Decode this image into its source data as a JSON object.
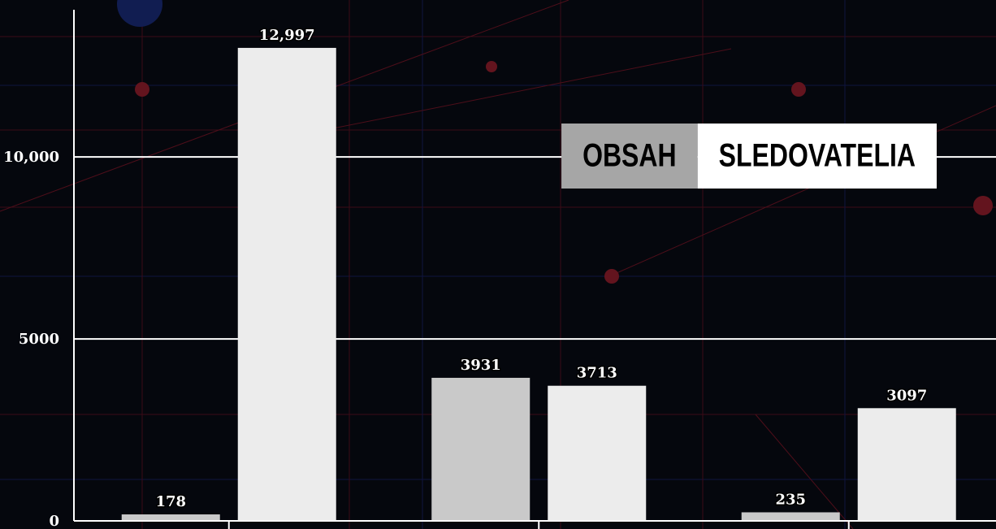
{
  "chart_data": {
    "type": "bar",
    "categories": [
      null,
      null,
      null
    ],
    "series": [
      {
        "name": "OBSAH",
        "color": "#c9c9c9",
        "values": [
          178,
          3931,
          235
        ]
      },
      {
        "name": "SLEDOVATELIA",
        "color": "#ececec",
        "values": [
          12997,
          3713,
          3097
        ],
        "value_labels": [
          "12,997",
          "3713",
          "3097"
        ]
      }
    ],
    "ylim": [
      0,
      14000
    ],
    "yticks": [
      0,
      5000,
      {
        "value": 10000,
        "label": "10,000"
      }
    ],
    "grid": true,
    "legend": "upper right"
  }
}
